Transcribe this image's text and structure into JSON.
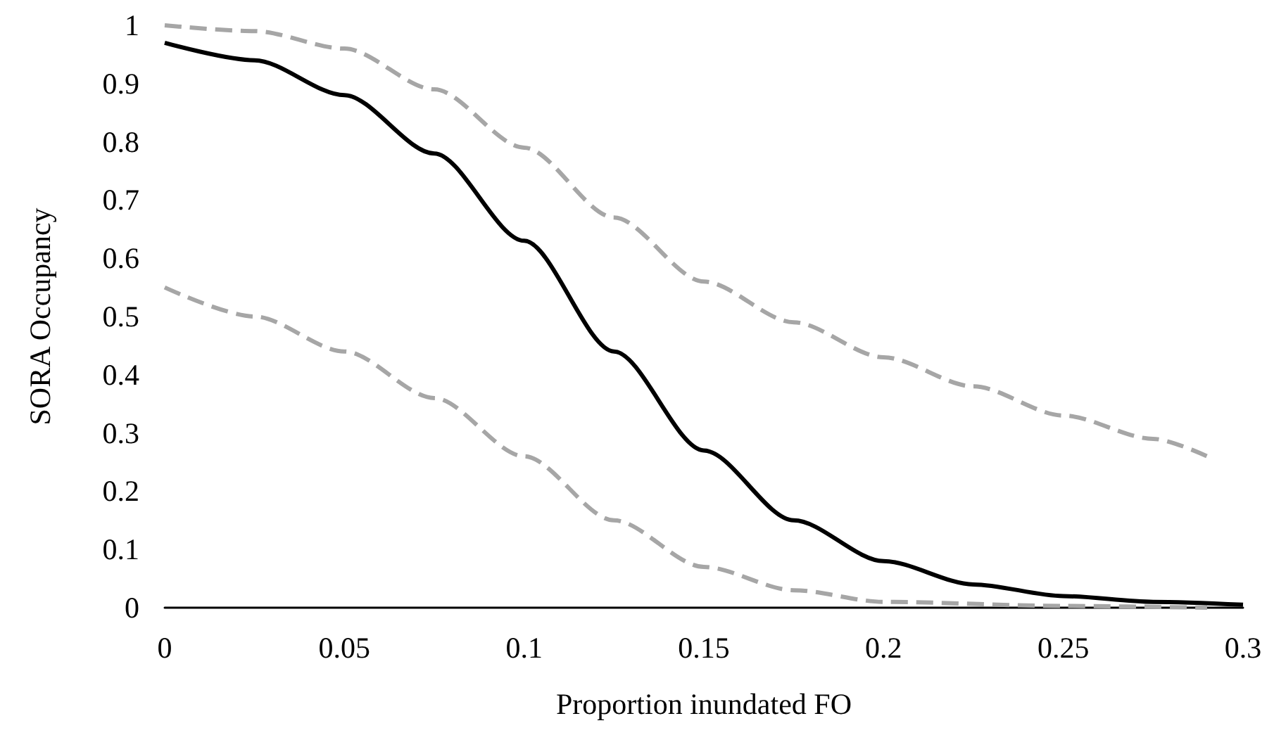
{
  "chart_data": {
    "type": "line",
    "xlabel": "Proportion inundated FO",
    "ylabel": "SORA Occupancy",
    "xlim": [
      0,
      0.3
    ],
    "xticks": [
      0,
      0.05,
      0.1,
      0.15,
      0.2,
      0.25,
      0.3
    ],
    "ylim": [
      0,
      1
    ],
    "yticks": [
      0,
      0.1,
      0.2,
      0.3,
      0.4,
      0.5,
      0.6,
      0.7,
      0.8,
      0.9,
      1
    ],
    "grid": false,
    "marker": "none",
    "series": [
      {
        "color": "#000000",
        "line_style": "solid",
        "x": [
          0,
          0.025,
          0.05,
          0.075,
          0.1,
          0.125,
          0.15,
          0.175,
          0.2,
          0.225,
          0.25,
          0.275,
          0.3
        ],
        "values": [
          0.97,
          0.94,
          0.88,
          0.78,
          0.63,
          0.44,
          0.27,
          0.15,
          0.08,
          0.04,
          0.02,
          0.01,
          0.005
        ]
      },
      {
        "color": "#a6a6a6",
        "line_style": "dashed",
        "x": [
          0,
          0.025,
          0.05,
          0.075,
          0.1,
          0.125,
          0.15,
          0.175,
          0.2,
          0.225,
          0.25,
          0.275,
          0.29
        ],
        "values": [
          1.0,
          0.99,
          0.96,
          0.89,
          0.79,
          0.67,
          0.56,
          0.49,
          0.43,
          0.38,
          0.33,
          0.29,
          0.26
        ]
      },
      {
        "color": "#a6a6a6",
        "line_style": "dashed",
        "x": [
          0,
          0.025,
          0.05,
          0.075,
          0.1,
          0.125,
          0.15,
          0.175,
          0.2,
          0.25,
          0.29
        ],
        "values": [
          0.55,
          0.5,
          0.44,
          0.36,
          0.26,
          0.15,
          0.07,
          0.03,
          0.01,
          0.003,
          0
        ]
      }
    ]
  }
}
